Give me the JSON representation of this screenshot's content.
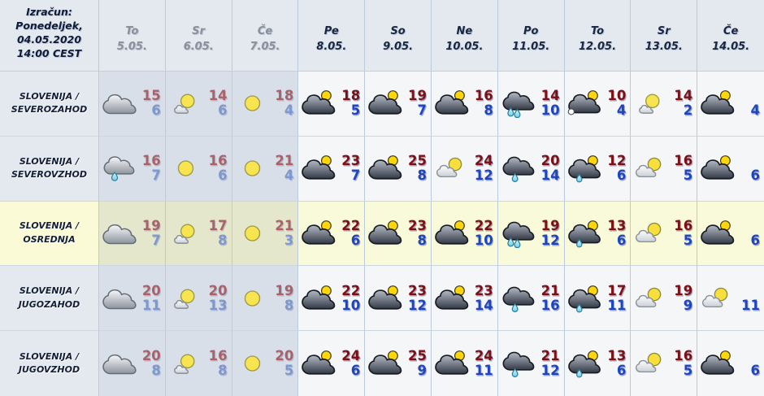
{
  "header": {
    "title_lines": [
      "Izračun:",
      "Ponedeljek,",
      "04.05.2020",
      "14:00 CEST"
    ],
    "columns": [
      {
        "day": "To",
        "date": "5.05.",
        "past": true
      },
      {
        "day": "Sr",
        "date": "6.05.",
        "past": true
      },
      {
        "day": "Če",
        "date": "7.05.",
        "past": true
      },
      {
        "day": "Pe",
        "date": "8.05.",
        "past": false
      },
      {
        "day": "So",
        "date": "9.05.",
        "past": false
      },
      {
        "day": "Ne",
        "date": "10.05.",
        "past": false
      },
      {
        "day": "Po",
        "date": "11.05.",
        "past": false
      },
      {
        "day": "To",
        "date": "12.05.",
        "past": false
      },
      {
        "day": "Sr",
        "date": "13.05.",
        "past": false
      },
      {
        "day": "Če",
        "date": "14.05.",
        "past": false
      }
    ]
  },
  "rows": [
    {
      "region": [
        "SLOVENIJA /",
        "SEVEROZAHOD"
      ],
      "highlight": false,
      "cells": [
        {
          "icon": "cloud-gray",
          "hi": "15",
          "lo": "6"
        },
        {
          "icon": "sun-cloud-small",
          "hi": "14",
          "lo": "6"
        },
        {
          "icon": "sun",
          "hi": "18",
          "lo": "4"
        },
        {
          "icon": "cloud-dark-sun",
          "hi": "18",
          "lo": "5"
        },
        {
          "icon": "cloud-dark-sun",
          "hi": "19",
          "lo": "7"
        },
        {
          "icon": "cloud-dark-sun",
          "hi": "16",
          "lo": "8"
        },
        {
          "icon": "cloud-dark-rain2",
          "hi": "14",
          "lo": "10"
        },
        {
          "icon": "cloud-dark-sun-snow",
          "hi": "10",
          "lo": "4"
        },
        {
          "icon": "sun-cloud-small",
          "hi": "14",
          "lo": "2"
        },
        {
          "icon": "cloud-dark-sun",
          "hi": null,
          "lo": "4"
        }
      ]
    },
    {
      "region": [
        "SLOVENIJA /",
        "SEVEROVZHOD"
      ],
      "highlight": false,
      "cells": [
        {
          "icon": "cloud-gray-rain1",
          "hi": "16",
          "lo": "7"
        },
        {
          "icon": "sun",
          "hi": "16",
          "lo": "6"
        },
        {
          "icon": "sun",
          "hi": "21",
          "lo": "4"
        },
        {
          "icon": "cloud-dark-sun",
          "hi": "23",
          "lo": "7"
        },
        {
          "icon": "cloud-dark-sun",
          "hi": "25",
          "lo": "8"
        },
        {
          "icon": "sun-cloud-white",
          "hi": "24",
          "lo": "12"
        },
        {
          "icon": "cloud-dark-rain1",
          "hi": "20",
          "lo": "14"
        },
        {
          "icon": "cloud-dark-sun-rain",
          "hi": "12",
          "lo": "6"
        },
        {
          "icon": "sun-cloud-white",
          "hi": "16",
          "lo": "5"
        },
        {
          "icon": "cloud-dark-sun",
          "hi": null,
          "lo": "6"
        }
      ]
    },
    {
      "region": [
        "SLOVENIJA /",
        "OSREDNJA"
      ],
      "highlight": true,
      "cells": [
        {
          "icon": "cloud-gray",
          "hi": "19",
          "lo": "7"
        },
        {
          "icon": "sun-cloud-small",
          "hi": "17",
          "lo": "8"
        },
        {
          "icon": "sun",
          "hi": "21",
          "lo": "3"
        },
        {
          "icon": "cloud-dark-sun",
          "hi": "22",
          "lo": "6"
        },
        {
          "icon": "cloud-dark-sun",
          "hi": "23",
          "lo": "8"
        },
        {
          "icon": "cloud-dark-sun",
          "hi": "22",
          "lo": "10"
        },
        {
          "icon": "cloud-dark-rain2",
          "hi": "19",
          "lo": "12"
        },
        {
          "icon": "cloud-dark-sun-rain",
          "hi": "13",
          "lo": "6"
        },
        {
          "icon": "sun-cloud-white",
          "hi": "16",
          "lo": "5"
        },
        {
          "icon": "cloud-dark-sun",
          "hi": null,
          "lo": "6"
        }
      ]
    },
    {
      "region": [
        "SLOVENIJA /",
        "JUGOZAHOD"
      ],
      "highlight": false,
      "cells": [
        {
          "icon": "cloud-gray",
          "hi": "20",
          "lo": "11"
        },
        {
          "icon": "sun-cloud-small",
          "hi": "20",
          "lo": "13"
        },
        {
          "icon": "sun",
          "hi": "19",
          "lo": "8"
        },
        {
          "icon": "cloud-dark-sun",
          "hi": "22",
          "lo": "10"
        },
        {
          "icon": "cloud-dark-sun",
          "hi": "23",
          "lo": "12"
        },
        {
          "icon": "cloud-dark-sun",
          "hi": "23",
          "lo": "14"
        },
        {
          "icon": "cloud-dark-rain1",
          "hi": "21",
          "lo": "16"
        },
        {
          "icon": "cloud-dark-sun-rain",
          "hi": "17",
          "lo": "11"
        },
        {
          "icon": "sun-cloud-white",
          "hi": "19",
          "lo": "9"
        },
        {
          "icon": "sun-cloud-white",
          "hi": null,
          "lo": "11"
        }
      ]
    },
    {
      "region": [
        "SLOVENIJA /",
        "JUGOVZHOD"
      ],
      "highlight": false,
      "cells": [
        {
          "icon": "cloud-gray",
          "hi": "20",
          "lo": "8"
        },
        {
          "icon": "sun-cloud-small",
          "hi": "16",
          "lo": "8"
        },
        {
          "icon": "sun",
          "hi": "20",
          "lo": "5"
        },
        {
          "icon": "cloud-dark-sun",
          "hi": "24",
          "lo": "6"
        },
        {
          "icon": "cloud-dark-sun",
          "hi": "25",
          "lo": "9"
        },
        {
          "icon": "cloud-dark-sun",
          "hi": "24",
          "lo": "11"
        },
        {
          "icon": "cloud-dark-rain1",
          "hi": "21",
          "lo": "12"
        },
        {
          "icon": "cloud-dark-sun-rain",
          "hi": "13",
          "lo": "6"
        },
        {
          "icon": "sun-cloud-white",
          "hi": "16",
          "lo": "5"
        },
        {
          "icon": "cloud-dark-sun",
          "hi": null,
          "lo": "6"
        }
      ]
    }
  ],
  "colors": {
    "hi_temp": "#7c1014",
    "lo_temp": "#1d45c0",
    "hi_temp_past": "#ab6168",
    "lo_temp_past": "#7d98d0",
    "header_text": "#1b2740",
    "header_text_past": "#8a9096",
    "highlight_row_bg": "#f8fad9",
    "past_col_bg": "#d8dfe8",
    "future_col_bg": "#f4f6f8"
  }
}
